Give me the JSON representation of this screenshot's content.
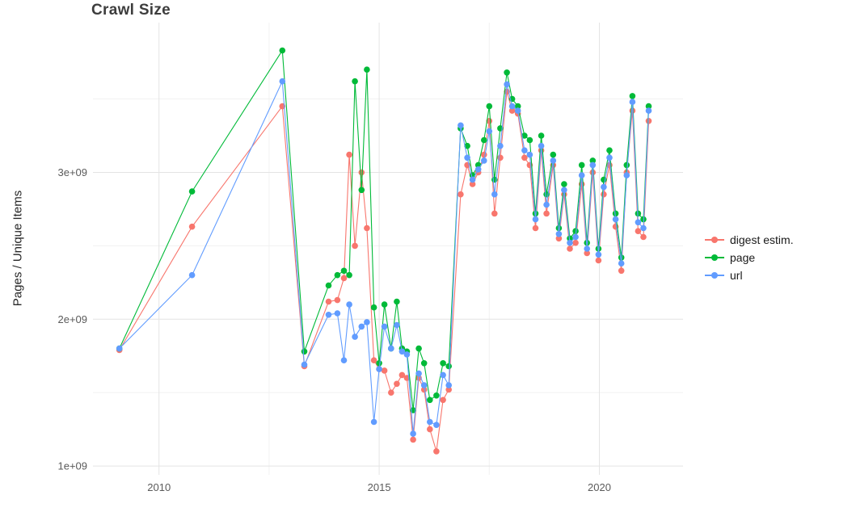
{
  "chart_data": {
    "type": "line",
    "markers": true,
    "title": "Crawl Size",
    "xlabel": "",
    "ylabel": "Pages / Unique Items",
    "y_unit": "1e+09",
    "xlim": [
      2008.5,
      2021.9
    ],
    "ylim": [
      0.94,
      4.02
    ],
    "x_ticks": [
      {
        "label": "2010",
        "value": 2010
      },
      {
        "label": "2015",
        "value": 2015
      },
      {
        "label": "2020",
        "value": 2020
      }
    ],
    "x_minor": [
      2012.5,
      2017.5
    ],
    "y_ticks": [
      {
        "label": "1e+09",
        "value": 1
      },
      {
        "label": "2e+09",
        "value": 2
      },
      {
        "label": "3e+09",
        "value": 3
      }
    ],
    "y_minor": [
      1.5,
      2.5,
      3.5
    ],
    "grid": true,
    "legend_position": "right",
    "colors": {
      "grid_major": "#e4e4e4",
      "grid_minor": "#f1f1f1",
      "background": "#ffffff"
    },
    "x": [
      2009.1,
      2010.75,
      2012.8,
      2013.3,
      2013.85,
      2014.05,
      2014.2,
      2014.32,
      2014.45,
      2014.6,
      2014.72,
      2014.88,
      2015.0,
      2015.12,
      2015.27,
      2015.4,
      2015.52,
      2015.63,
      2015.77,
      2015.9,
      2016.02,
      2016.15,
      2016.3,
      2016.45,
      2016.58,
      2016.85,
      2017.0,
      2017.12,
      2017.25,
      2017.38,
      2017.5,
      2017.62,
      2017.75,
      2017.9,
      2018.02,
      2018.15,
      2018.3,
      2018.42,
      2018.55,
      2018.68,
      2018.8,
      2018.95,
      2019.08,
      2019.2,
      2019.33,
      2019.46,
      2019.6,
      2019.72,
      2019.85,
      2019.98,
      2020.1,
      2020.23,
      2020.37,
      2020.5,
      2020.62,
      2020.75,
      2020.88,
      2021.0,
      2021.12
    ],
    "series": [
      {
        "id": "digest",
        "label": "digest estim.",
        "color": "#F8766D",
        "values": [
          1.79,
          2.63,
          3.45,
          1.68,
          2.12,
          2.13,
          2.28,
          3.12,
          2.5,
          3.0,
          2.62,
          1.72,
          1.66,
          1.65,
          1.5,
          1.56,
          1.62,
          1.6,
          1.18,
          1.6,
          1.52,
          1.25,
          1.1,
          1.45,
          1.52,
          2.85,
          3.05,
          2.92,
          3.0,
          3.12,
          3.35,
          2.72,
          3.1,
          3.55,
          3.42,
          3.4,
          3.1,
          3.05,
          2.62,
          3.15,
          2.72,
          3.05,
          2.55,
          2.85,
          2.48,
          2.52,
          2.92,
          2.45,
          3.0,
          2.4,
          2.85,
          3.05,
          2.63,
          2.33,
          3.0,
          3.42,
          2.6,
          2.56,
          3.35
        ]
      },
      {
        "id": "page",
        "label": "page",
        "color": "#00BA38",
        "values": [
          1.8,
          2.87,
          3.83,
          1.78,
          2.23,
          2.3,
          2.33,
          2.3,
          3.62,
          2.88,
          3.7,
          2.08,
          1.7,
          2.1,
          1.8,
          2.12,
          1.8,
          1.78,
          1.38,
          1.8,
          1.7,
          1.45,
          1.48,
          1.7,
          1.68,
          3.3,
          3.18,
          2.98,
          3.05,
          3.22,
          3.45,
          2.95,
          3.3,
          3.68,
          3.5,
          3.45,
          3.25,
          3.22,
          2.72,
          3.25,
          2.85,
          3.12,
          2.62,
          2.92,
          2.55,
          2.6,
          3.05,
          2.52,
          3.08,
          2.48,
          2.95,
          3.15,
          2.72,
          2.42,
          3.05,
          3.52,
          2.72,
          2.68,
          3.45
        ]
      },
      {
        "id": "url",
        "label": "url",
        "color": "#619CFF",
        "values": [
          1.8,
          2.3,
          3.62,
          1.69,
          2.03,
          2.04,
          1.72,
          2.1,
          1.88,
          1.95,
          1.98,
          1.3,
          1.66,
          1.95,
          1.8,
          1.96,
          1.78,
          1.76,
          1.22,
          1.63,
          1.55,
          1.3,
          1.28,
          1.62,
          1.55,
          3.32,
          3.1,
          2.95,
          3.02,
          3.08,
          3.28,
          2.85,
          3.18,
          3.6,
          3.45,
          3.42,
          3.15,
          3.12,
          2.68,
          3.18,
          2.78,
          3.08,
          2.58,
          2.88,
          2.52,
          2.56,
          2.98,
          2.48,
          3.05,
          2.44,
          2.9,
          3.1,
          2.68,
          2.38,
          2.98,
          3.48,
          2.66,
          2.62,
          3.42
        ]
      }
    ]
  }
}
